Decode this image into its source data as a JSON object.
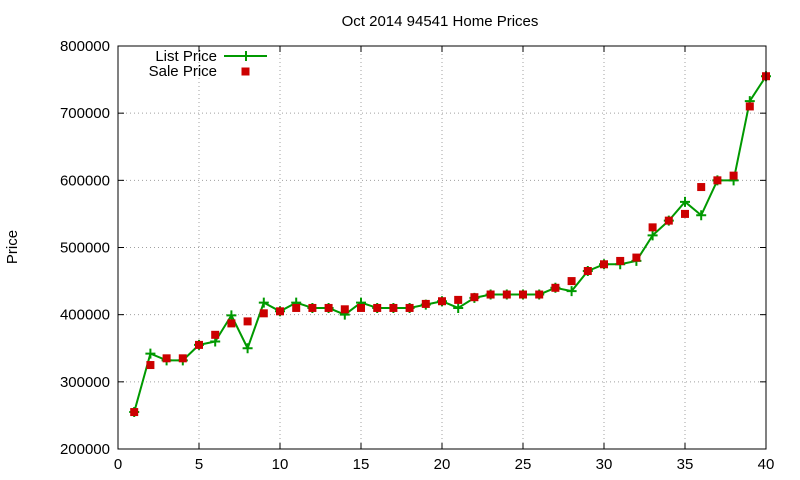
{
  "chart_data": {
    "type": "line",
    "title": "Oct 2014 94541 Home Prices",
    "xlabel": "",
    "ylabel": "Price",
    "xlim": [
      0,
      40
    ],
    "ylim": [
      200000,
      800000
    ],
    "xticks": [
      0,
      5,
      10,
      15,
      20,
      25,
      30,
      35,
      40
    ],
    "yticks": [
      200000,
      300000,
      400000,
      500000,
      600000,
      700000,
      800000
    ],
    "grid": true,
    "legend_position": "top-left",
    "x": [
      1,
      2,
      3,
      4,
      5,
      6,
      7,
      8,
      9,
      10,
      11,
      12,
      13,
      14,
      15,
      16,
      17,
      18,
      19,
      20,
      21,
      22,
      23,
      24,
      25,
      26,
      27,
      28,
      29,
      30,
      31,
      32,
      33,
      34,
      35,
      36,
      37,
      38,
      39,
      40
    ],
    "series": [
      {
        "name": "List Price",
        "style": "line-with-plus-markers",
        "color": "#009900",
        "values": [
          255000,
          342000,
          332000,
          332000,
          355000,
          360000,
          399000,
          350000,
          418000,
          405000,
          418000,
          410000,
          410000,
          400000,
          418000,
          410000,
          410000,
          410000,
          415000,
          420000,
          410000,
          425000,
          430000,
          430000,
          430000,
          430000,
          440000,
          435000,
          465000,
          475000,
          475000,
          480000,
          518000,
          540000,
          568000,
          548000,
          600000,
          600000,
          718000,
          755000
        ]
      },
      {
        "name": "Sale Price",
        "style": "square-markers",
        "color": "#cc0000",
        "values": [
          255000,
          325000,
          335000,
          335000,
          355000,
          370000,
          387000,
          390000,
          402000,
          405000,
          410000,
          410000,
          410000,
          408000,
          410000,
          410000,
          410000,
          410000,
          416000,
          420000,
          422000,
          426000,
          430000,
          430000,
          430000,
          430000,
          440000,
          450000,
          465000,
          475000,
          480000,
          485000,
          530000,
          540000,
          550000,
          590000,
          600000,
          607000,
          710000,
          755000
        ]
      }
    ]
  }
}
